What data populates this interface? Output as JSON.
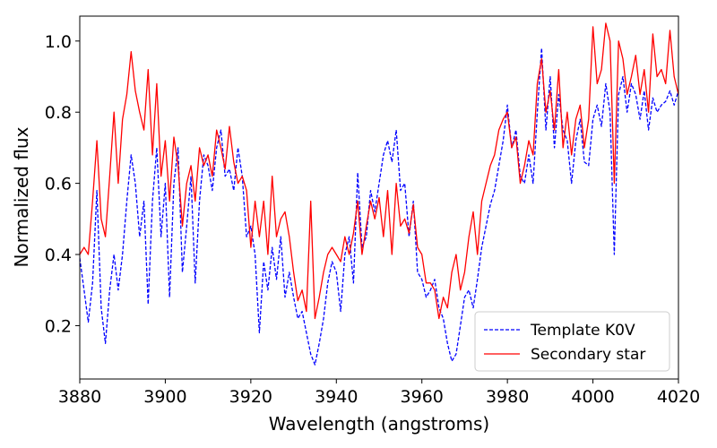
{
  "chart_data": {
    "type": "line",
    "xlabel": "Wavelength (angstroms)",
    "ylabel": "Normalized flux",
    "xlim": [
      3880,
      4020
    ],
    "ylim": [
      0.05,
      1.07
    ],
    "xticks": [
      3880,
      3900,
      3920,
      3940,
      3960,
      3980,
      4000,
      4020
    ],
    "xtick_labels": [
      "3880",
      "3900",
      "3920",
      "3940",
      "3960",
      "3980",
      "4000",
      "4020"
    ],
    "yticks": [
      0.2,
      0.4,
      0.6,
      0.8,
      1.0
    ],
    "ytick_labels": [
      "0.2",
      "0.4",
      "0.6",
      "0.8",
      "1.0"
    ],
    "grid": false,
    "legend_position": "bottom-right",
    "series": [
      {
        "name": "Template K0V",
        "color": "#0000ff",
        "dash": "dashed",
        "x": [
          3880,
          3881,
          3882,
          3883,
          3884,
          3885,
          3886,
          3887,
          3888,
          3889,
          3890,
          3891,
          3892,
          3893,
          3894,
          3895,
          3896,
          3897,
          3898,
          3899,
          3900,
          3901,
          3902,
          3903,
          3904,
          3905,
          3906,
          3907,
          3908,
          3909,
          3910,
          3911,
          3912,
          3913,
          3914,
          3915,
          3916,
          3917,
          3918,
          3919,
          3920,
          3921,
          3922,
          3923,
          3924,
          3925,
          3926,
          3927,
          3928,
          3929,
          3930,
          3931,
          3932,
          3933,
          3934,
          3935,
          3936,
          3937,
          3938,
          3939,
          3940,
          3941,
          3942,
          3943,
          3944,
          3945,
          3946,
          3947,
          3948,
          3949,
          3950,
          3951,
          3952,
          3953,
          3954,
          3955,
          3956,
          3957,
          3958,
          3959,
          3960,
          3961,
          3962,
          3963,
          3964,
          3965,
          3966,
          3967,
          3968,
          3969,
          3970,
          3971,
          3972,
          3973,
          3974,
          3975,
          3976,
          3977,
          3978,
          3979,
          3980,
          3981,
          3982,
          3983,
          3984,
          3985,
          3986,
          3987,
          3988,
          3989,
          3990,
          3991,
          3992,
          3993,
          3994,
          3995,
          3996,
          3997,
          3998,
          3999,
          4000,
          4001,
          4002,
          4003,
          4004,
          4005,
          4006,
          4007,
          4008,
          4009,
          4010,
          4011,
          4012,
          4013,
          4014,
          4015,
          4016,
          4017,
          4018,
          4019,
          4020
        ],
        "y": [
          0.39,
          0.3,
          0.21,
          0.32,
          0.58,
          0.25,
          0.15,
          0.3,
          0.4,
          0.3,
          0.4,
          0.55,
          0.68,
          0.6,
          0.45,
          0.55,
          0.26,
          0.55,
          0.7,
          0.45,
          0.6,
          0.28,
          0.6,
          0.7,
          0.35,
          0.48,
          0.62,
          0.32,
          0.55,
          0.68,
          0.65,
          0.58,
          0.7,
          0.75,
          0.62,
          0.64,
          0.58,
          0.7,
          0.62,
          0.45,
          0.48,
          0.4,
          0.18,
          0.38,
          0.3,
          0.42,
          0.33,
          0.45,
          0.28,
          0.35,
          0.28,
          0.22,
          0.24,
          0.18,
          0.12,
          0.09,
          0.15,
          0.22,
          0.32,
          0.38,
          0.35,
          0.24,
          0.4,
          0.45,
          0.32,
          0.63,
          0.42,
          0.45,
          0.58,
          0.52,
          0.6,
          0.68,
          0.72,
          0.66,
          0.75,
          0.58,
          0.6,
          0.45,
          0.55,
          0.35,
          0.33,
          0.28,
          0.3,
          0.33,
          0.25,
          0.22,
          0.15,
          0.1,
          0.12,
          0.2,
          0.28,
          0.3,
          0.25,
          0.33,
          0.42,
          0.48,
          0.54,
          0.58,
          0.65,
          0.72,
          0.82,
          0.7,
          0.75,
          0.62,
          0.6,
          0.68,
          0.6,
          0.8,
          0.98,
          0.75,
          0.9,
          0.7,
          0.85,
          0.75,
          0.72,
          0.6,
          0.72,
          0.78,
          0.66,
          0.65,
          0.78,
          0.82,
          0.76,
          0.88,
          0.8,
          0.4,
          0.85,
          0.9,
          0.8,
          0.88,
          0.85,
          0.78,
          0.86,
          0.75,
          0.84,
          0.8,
          0.82,
          0.83,
          0.86,
          0.82,
          0.86
        ]
      },
      {
        "name": "Secondary star",
        "color": "#ff0000",
        "dash": "solid",
        "x": [
          3880,
          3881,
          3882,
          3883,
          3884,
          3885,
          3886,
          3887,
          3888,
          3889,
          3890,
          3891,
          3892,
          3893,
          3894,
          3895,
          3896,
          3897,
          3898,
          3899,
          3900,
          3901,
          3902,
          3903,
          3904,
          3905,
          3906,
          3907,
          3908,
          3909,
          3910,
          3911,
          3912,
          3913,
          3914,
          3915,
          3916,
          3917,
          3918,
          3919,
          3920,
          3921,
          3922,
          3923,
          3924,
          3925,
          3926,
          3927,
          3928,
          3929,
          3930,
          3931,
          3932,
          3933,
          3934,
          3935,
          3936,
          3937,
          3938,
          3939,
          3940,
          3941,
          3942,
          3943,
          3944,
          3945,
          3946,
          3947,
          3948,
          3949,
          3950,
          3951,
          3952,
          3953,
          3954,
          3955,
          3956,
          3957,
          3958,
          3959,
          3960,
          3961,
          3962,
          3963,
          3964,
          3965,
          3966,
          3967,
          3968,
          3969,
          3970,
          3971,
          3972,
          3973,
          3974,
          3975,
          3976,
          3977,
          3978,
          3979,
          3980,
          3981,
          3982,
          3983,
          3984,
          3985,
          3986,
          3987,
          3988,
          3989,
          3990,
          3991,
          3992,
          3993,
          3994,
          3995,
          3996,
          3997,
          3998,
          3999,
          4000,
          4001,
          4002,
          4003,
          4004,
          4005,
          4006,
          4007,
          4008,
          4009,
          4010,
          4011,
          4012,
          4013,
          4014,
          4015,
          4016,
          4017,
          4018,
          4019,
          4020
        ],
        "y": [
          0.4,
          0.42,
          0.4,
          0.55,
          0.72,
          0.5,
          0.45,
          0.62,
          0.8,
          0.6,
          0.78,
          0.85,
          0.97,
          0.86,
          0.8,
          0.75,
          0.92,
          0.68,
          0.88,
          0.62,
          0.72,
          0.55,
          0.73,
          0.65,
          0.48,
          0.6,
          0.65,
          0.55,
          0.7,
          0.65,
          0.68,
          0.62,
          0.75,
          0.7,
          0.64,
          0.76,
          0.66,
          0.6,
          0.62,
          0.58,
          0.42,
          0.55,
          0.45,
          0.55,
          0.4,
          0.62,
          0.45,
          0.5,
          0.52,
          0.45,
          0.35,
          0.27,
          0.3,
          0.24,
          0.55,
          0.22,
          0.28,
          0.35,
          0.4,
          0.42,
          0.4,
          0.38,
          0.45,
          0.4,
          0.46,
          0.55,
          0.4,
          0.48,
          0.55,
          0.5,
          0.56,
          0.45,
          0.58,
          0.4,
          0.6,
          0.48,
          0.5,
          0.46,
          0.54,
          0.42,
          0.4,
          0.32,
          0.32,
          0.3,
          0.22,
          0.28,
          0.25,
          0.35,
          0.4,
          0.3,
          0.35,
          0.45,
          0.52,
          0.4,
          0.55,
          0.6,
          0.65,
          0.68,
          0.75,
          0.78,
          0.8,
          0.7,
          0.73,
          0.6,
          0.65,
          0.72,
          0.68,
          0.88,
          0.95,
          0.8,
          0.86,
          0.75,
          0.92,
          0.7,
          0.8,
          0.68,
          0.78,
          0.82,
          0.7,
          0.78,
          1.04,
          0.88,
          0.92,
          1.05,
          1.0,
          0.6,
          1.0,
          0.95,
          0.85,
          0.9,
          0.96,
          0.85,
          0.92,
          0.8,
          1.02,
          0.9,
          0.92,
          0.88,
          1.03,
          0.9,
          0.85
        ]
      }
    ]
  }
}
